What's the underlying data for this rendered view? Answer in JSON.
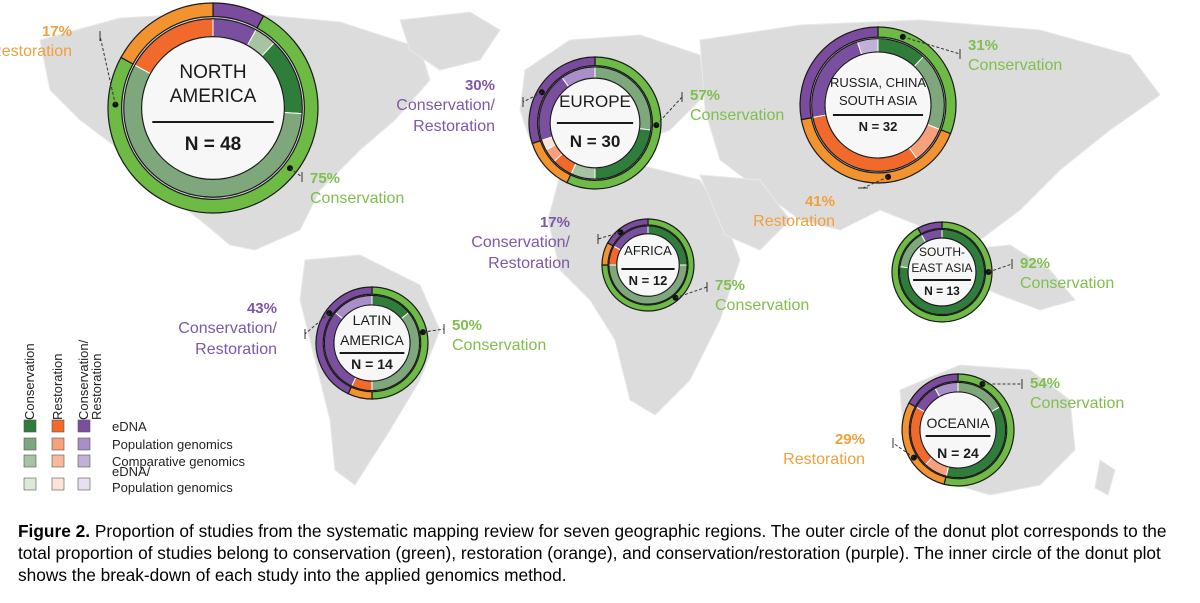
{
  "colors": {
    "conservation": [
      "#2e7d3a",
      "#7ea87c",
      "#a7c4a2",
      "#dde8d8"
    ],
    "restoration": [
      "#f26a2b",
      "#f7a07b",
      "#f9b99c",
      "#fde3d6"
    ],
    "conservation_restoration": [
      "#7a4fa0",
      "#a98fc7",
      "#c1b0d8",
      "#e8e0f1"
    ],
    "outer": {
      "conservation": "#6dbb45",
      "restoration": "#f29330",
      "conservation_restoration": "#7b4b9e"
    },
    "map": "#dcdcdc",
    "pct_conservation": "#7fbf4d",
    "pct_restoration": "#f0a03c",
    "pct_conservation_restoration": "#7e57a8"
  },
  "legend": {
    "columns": [
      "Conservation",
      "Restoration",
      "Conservation/\nRestoration"
    ],
    "rows": [
      "eDNA",
      "Population genomics",
      "Comparative genomics",
      "eDNA/\nPopulation genomics"
    ]
  },
  "chart_data": {
    "type": "donut",
    "regions": [
      {
        "name": [
          "NORTH",
          "AMERICA"
        ],
        "n_label": "N = 48",
        "n": 48,
        "outer": [
          {
            "category": "conservation_restoration",
            "value": 0.08
          },
          {
            "category": "conservation",
            "value": 0.75
          },
          {
            "category": "restoration",
            "value": 0.17
          }
        ],
        "inner": [
          {
            "category": "conservation_restoration",
            "tone": 0,
            "value": 0.08
          },
          {
            "category": "conservation",
            "tone": 2,
            "value": 0.04
          },
          {
            "category": "conservation",
            "tone": 0,
            "value": 0.14
          },
          {
            "category": "conservation",
            "tone": 1,
            "value": 0.57
          },
          {
            "category": "restoration",
            "tone": 0,
            "value": 0.17
          }
        ],
        "callouts": [
          {
            "pct": "17%",
            "label": "Restoration",
            "category": "restoration"
          },
          {
            "pct": "75%",
            "label": "Conservation",
            "category": "conservation"
          }
        ]
      },
      {
        "name": [
          "EUROPE"
        ],
        "n_label": "N = 30",
        "n": 30,
        "outer": [
          {
            "category": "conservation",
            "value": 0.57
          },
          {
            "category": "restoration",
            "value": 0.13
          },
          {
            "category": "conservation_restoration",
            "value": 0.3
          }
        ],
        "inner": [
          {
            "category": "conservation",
            "tone": 1,
            "value": 0.27
          },
          {
            "category": "conservation",
            "tone": 0,
            "value": 0.23
          },
          {
            "category": "conservation",
            "tone": 2,
            "value": 0.07
          },
          {
            "category": "restoration",
            "tone": 0,
            "value": 0.06
          },
          {
            "category": "restoration",
            "tone": 1,
            "value": 0.04
          },
          {
            "category": "restoration",
            "tone": 3,
            "value": 0.03
          },
          {
            "category": "conservation_restoration",
            "tone": 0,
            "value": 0.2
          },
          {
            "category": "conservation_restoration",
            "tone": 1,
            "value": 0.1
          }
        ],
        "callouts": [
          {
            "pct": "30%",
            "label": "Conservation/\nRestoration",
            "category": "conservation_restoration"
          },
          {
            "pct": "57%",
            "label": "Conservation",
            "category": "conservation"
          }
        ]
      },
      {
        "name": [
          "RUSSIA, CHINA",
          "SOUTH ASIA"
        ],
        "n_label": "N = 32",
        "n": 32,
        "outer": [
          {
            "category": "conservation",
            "value": 0.31
          },
          {
            "category": "restoration",
            "value": 0.41
          },
          {
            "category": "conservation_restoration",
            "value": 0.28
          }
        ],
        "inner": [
          {
            "category": "conservation",
            "tone": 0,
            "value": 0.12
          },
          {
            "category": "conservation",
            "tone": 1,
            "value": 0.19
          },
          {
            "category": "restoration",
            "tone": 1,
            "value": 0.09
          },
          {
            "category": "restoration",
            "tone": 0,
            "value": 0.32
          },
          {
            "category": "conservation_restoration",
            "tone": 0,
            "value": 0.23
          },
          {
            "category": "conservation_restoration",
            "tone": 2,
            "value": 0.05
          }
        ],
        "callouts": [
          {
            "pct": "31%",
            "label": "Conservation",
            "category": "conservation"
          },
          {
            "pct": "41%",
            "label": "Restoration",
            "category": "restoration"
          }
        ]
      },
      {
        "name": [
          "AFRICA"
        ],
        "n_label": "N = 12",
        "n": 12,
        "outer": [
          {
            "category": "conservation",
            "value": 0.75
          },
          {
            "category": "restoration",
            "value": 0.08
          },
          {
            "category": "conservation_restoration",
            "value": 0.17
          }
        ],
        "inner": [
          {
            "category": "conservation",
            "tone": 0,
            "value": 0.25
          },
          {
            "category": "conservation",
            "tone": 1,
            "value": 0.5
          },
          {
            "category": "restoration",
            "tone": 0,
            "value": 0.08
          },
          {
            "category": "conservation_restoration",
            "tone": 0,
            "value": 0.17
          }
        ],
        "callouts": [
          {
            "pct": "17%",
            "label": "Conservation/\nRestoration",
            "category": "conservation_restoration"
          },
          {
            "pct": "75%",
            "label": "Conservation",
            "category": "conservation"
          }
        ]
      },
      {
        "name": [
          "LATIN",
          "AMERICA"
        ],
        "n_label": "N = 14",
        "n": 14,
        "outer": [
          {
            "category": "conservation",
            "value": 0.5
          },
          {
            "category": "restoration",
            "value": 0.07
          },
          {
            "category": "conservation_restoration",
            "value": 0.43
          }
        ],
        "inner": [
          {
            "category": "conservation",
            "tone": 0,
            "value": 0.14
          },
          {
            "category": "conservation",
            "tone": 1,
            "value": 0.36
          },
          {
            "category": "restoration",
            "tone": 0,
            "value": 0.07
          },
          {
            "category": "conservation_restoration",
            "tone": 0,
            "value": 0.29
          },
          {
            "category": "conservation_restoration",
            "tone": 1,
            "value": 0.14
          }
        ],
        "callouts": [
          {
            "pct": "43%",
            "label": "Conservation/\nRestoration",
            "category": "conservation_restoration"
          },
          {
            "pct": "50%",
            "label": "Conservation",
            "category": "conservation"
          }
        ]
      },
      {
        "name": [
          "SOUTH-",
          "EAST ASIA"
        ],
        "n_label": "N = 13",
        "n": 13,
        "outer": [
          {
            "category": "conservation",
            "value": 0.92
          },
          {
            "category": "conservation_restoration",
            "value": 0.08
          }
        ],
        "inner": [
          {
            "category": "conservation",
            "tone": 0,
            "value": 0.77
          },
          {
            "category": "conservation",
            "tone": 1,
            "value": 0.15
          },
          {
            "category": "conservation_restoration",
            "tone": 0,
            "value": 0.08
          }
        ],
        "callouts": [
          {
            "pct": "92%",
            "label": "Conservation",
            "category": "conservation"
          }
        ]
      },
      {
        "name": [
          "OCEANIA"
        ],
        "n_label": "N = 24",
        "n": 24,
        "outer": [
          {
            "category": "conservation",
            "value": 0.54
          },
          {
            "category": "restoration",
            "value": 0.29
          },
          {
            "category": "conservation_restoration",
            "value": 0.17
          }
        ],
        "inner": [
          {
            "category": "conservation",
            "tone": 1,
            "value": 0.17
          },
          {
            "category": "conservation",
            "tone": 0,
            "value": 0.37
          },
          {
            "category": "restoration",
            "tone": 1,
            "value": 0.08
          },
          {
            "category": "restoration",
            "tone": 0,
            "value": 0.21
          },
          {
            "category": "conservation_restoration",
            "tone": 0,
            "value": 0.09
          },
          {
            "category": "conservation_restoration",
            "tone": 1,
            "value": 0.08
          }
        ],
        "callouts": [
          {
            "pct": "54%",
            "label": "Conservation",
            "category": "conservation"
          },
          {
            "pct": "29%",
            "label": "Restoration",
            "category": "restoration"
          }
        ]
      }
    ]
  },
  "caption": {
    "label": "Figure 2.",
    "text": " Proportion of studies from the systematic mapping review for seven geographic regions. The outer circle of the donut plot corresponds to the total proportion of studies belong to conservation (green), restoration (orange), and conservation/restoration (purple). The inner circle of the donut plot shows the break-down of each study into the applied genomics method."
  }
}
